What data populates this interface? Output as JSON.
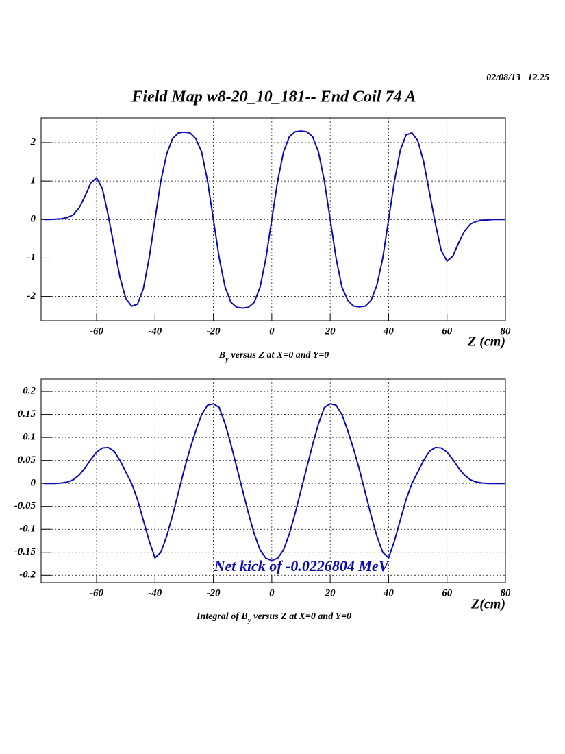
{
  "date": "02/08/13   12.25",
  "title": "Field Map w8-20_10_181-- End Coil 74 A",
  "chart_data": [
    {
      "type": "line",
      "x": [
        -78,
        -76,
        -74,
        -72,
        -70,
        -68,
        -66,
        -64,
        -62,
        -60,
        -58,
        -56,
        -54,
        -52,
        -50,
        -48,
        -46,
        -44,
        -42,
        -40,
        -38,
        -36,
        -34,
        -32,
        -30,
        -28,
        -26,
        -24,
        -22,
        -20,
        -18,
        -16,
        -14,
        -12,
        -10,
        -8,
        -6,
        -4,
        -2,
        0,
        2,
        4,
        6,
        8,
        10,
        12,
        14,
        16,
        18,
        20,
        22,
        24,
        26,
        28,
        30,
        32,
        34,
        36,
        38,
        40,
        42,
        44,
        46,
        48,
        50,
        52,
        54,
        56,
        58,
        60,
        62,
        64,
        66,
        68,
        70,
        72,
        74,
        76,
        78,
        80
      ],
      "values": [
        0,
        0,
        0.01,
        0.02,
        0.05,
        0.12,
        0.3,
        0.6,
        0.95,
        1.08,
        0.8,
        0.1,
        -0.7,
        -1.5,
        -2.05,
        -2.25,
        -2.2,
        -1.8,
        -1.0,
        0,
        1.0,
        1.7,
        2.1,
        2.25,
        2.27,
        2.25,
        2.1,
        1.75,
        1.0,
        0,
        -1.0,
        -1.75,
        -2.15,
        -2.28,
        -2.3,
        -2.28,
        -2.15,
        -1.75,
        -1.0,
        0,
        1.0,
        1.75,
        2.15,
        2.28,
        2.3,
        2.28,
        2.15,
        1.75,
        1.0,
        0,
        -1.0,
        -1.75,
        -2.1,
        -2.25,
        -2.27,
        -2.25,
        -2.1,
        -1.7,
        -1.0,
        0,
        1.0,
        1.8,
        2.2,
        2.25,
        2.05,
        1.5,
        0.7,
        -0.1,
        -0.8,
        -1.08,
        -0.95,
        -0.6,
        -0.3,
        -0.12,
        -0.05,
        -0.02,
        -0.01,
        0,
        0,
        0
      ],
      "color": "#0a0ab4",
      "xlim": [
        -79,
        80
      ],
      "xticks": [
        -60,
        -40,
        -20,
        0,
        20,
        40,
        60,
        80
      ],
      "ylim": [
        -2.63,
        2.64
      ],
      "yticks": [
        -2,
        -1,
        0,
        1,
        2
      ],
      "grid": true,
      "xlabel": "Z (cm)",
      "caption": [
        "B",
        "y",
        " versus Z at X=0 and Y=0"
      ]
    },
    {
      "type": "line",
      "x": [
        -78,
        -76,
        -74,
        -72,
        -70,
        -68,
        -66,
        -64,
        -62,
        -60,
        -58,
        -56,
        -54,
        -52,
        -50,
        -48,
        -46,
        -44,
        -42,
        -40,
        -38,
        -36,
        -34,
        -32,
        -30,
        -28,
        -26,
        -24,
        -22,
        -20,
        -18,
        -16,
        -14,
        -12,
        -10,
        -8,
        -6,
        -4,
        -2,
        0,
        2,
        4,
        6,
        8,
        10,
        12,
        14,
        16,
        18,
        20,
        22,
        24,
        26,
        28,
        30,
        32,
        34,
        36,
        38,
        40,
        42,
        44,
        46,
        48,
        50,
        52,
        54,
        56,
        58,
        60,
        62,
        64,
        66,
        68,
        70,
        72,
        74,
        76,
        78,
        80
      ],
      "values": [
        0,
        0,
        0,
        0.001,
        0.003,
        0.008,
        0.018,
        0.033,
        0.052,
        0.068,
        0.077,
        0.078,
        0.07,
        0.05,
        0.025,
        0,
        -0.035,
        -0.08,
        -0.125,
        -0.162,
        -0.15,
        -0.115,
        -0.07,
        -0.02,
        0.03,
        0.075,
        0.115,
        0.15,
        0.17,
        0.173,
        0.165,
        0.13,
        0.085,
        0.035,
        -0.015,
        -0.065,
        -0.11,
        -0.145,
        -0.163,
        -0.168,
        -0.163,
        -0.145,
        -0.11,
        -0.065,
        -0.015,
        0.035,
        0.085,
        0.13,
        0.165,
        0.173,
        0.17,
        0.15,
        0.115,
        0.075,
        0.03,
        -0.02,
        -0.07,
        -0.115,
        -0.15,
        -0.162,
        -0.125,
        -0.08,
        -0.035,
        0,
        0.025,
        0.05,
        0.07,
        0.078,
        0.077,
        0.068,
        0.052,
        0.033,
        0.018,
        0.008,
        0.003,
        0.001,
        0,
        0,
        0,
        0
      ],
      "color": "#0a0ab4",
      "xlim": [
        -79,
        80
      ],
      "xticks": [
        -60,
        -40,
        -20,
        0,
        20,
        40,
        60,
        80
      ],
      "ylim": [
        -0.216,
        0.227
      ],
      "yticks": [
        -0.2,
        -0.15,
        -0.1,
        -0.05,
        0,
        0.05,
        0.1,
        0.15,
        0.2
      ],
      "grid": true,
      "xlabel": "Z(cm)",
      "caption": [
        "Integral of B",
        "y",
        " versus Z at X=0 and Y=0"
      ],
      "annotation": "Net kick of -0.0226804 MeV"
    }
  ]
}
